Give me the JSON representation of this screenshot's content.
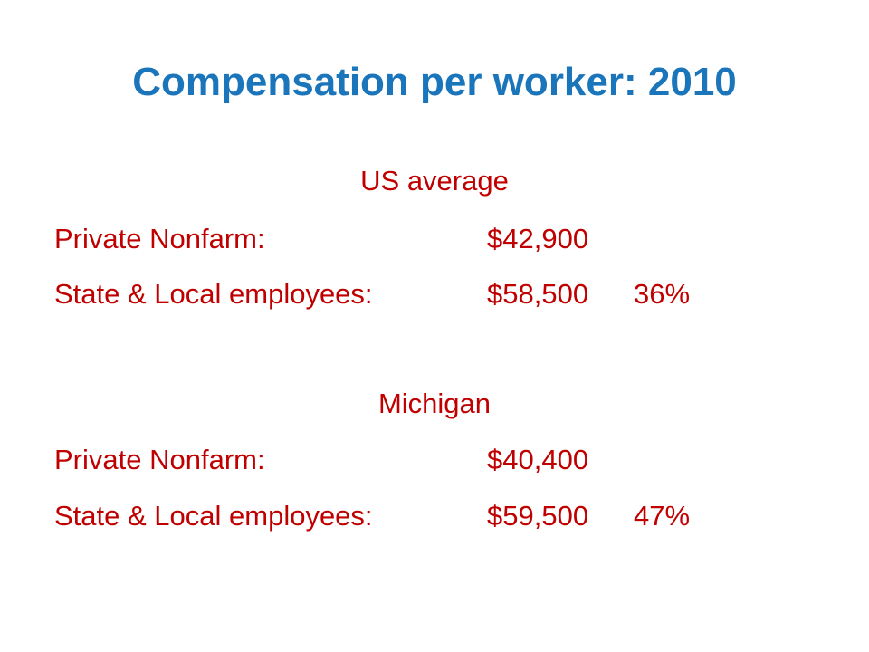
{
  "title": "Compensation per worker: 2010",
  "sections": [
    {
      "heading": "US average",
      "rows": [
        {
          "label": "Private Nonfarm:",
          "amount": "$42,900"
        },
        {
          "label": "State & Local employees:",
          "amount": "$58,500",
          "pct": "36%"
        }
      ]
    },
    {
      "heading": "Michigan",
      "rows": [
        {
          "label": "Private Nonfarm:",
          "amount": "$40,400"
        },
        {
          "label": "State & Local employees:",
          "amount": "$59,500",
          "pct": "47%"
        }
      ]
    }
  ]
}
